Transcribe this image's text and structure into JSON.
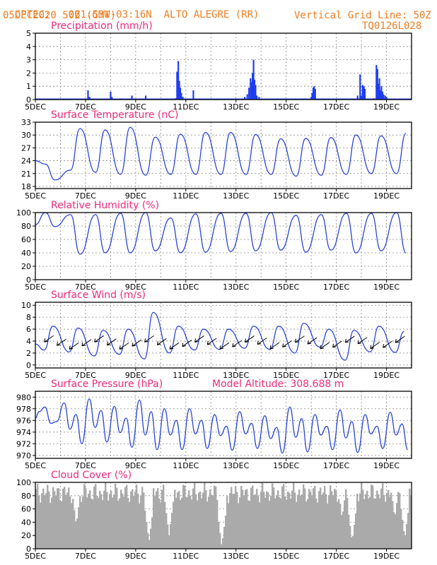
{
  "header": {
    "center_label": "CPTEC:",
    "coords": "061:53W-03:16N",
    "location": "ALTO ALEGRE (RR)",
    "date": "05DEC2020 50Z (GMT)",
    "grid_note": "Vertical Grid Line: 50Z",
    "product_code": "TQ0126L028"
  },
  "colors": {
    "header_text": "#ee7d22",
    "panel_title": "#ee2a7b",
    "series_line": "#2b45d8",
    "precip_bar": "#1f3df0",
    "cloud_fill": "#aaaaaa",
    "wind_arrow": "#000000"
  },
  "chart_data": [
    {
      "id": "precipitation",
      "type": "bar",
      "title": "Precipitation (mm/h)",
      "ylim": [
        0,
        5
      ],
      "yticks": [
        0,
        1,
        2,
        3,
        4,
        5
      ],
      "xticks": [
        "5DEC",
        "7DEC",
        "9DEC",
        "11DEC",
        "13DEC",
        "15DEC",
        "17DEC",
        "19DEC"
      ],
      "grid": true,
      "x_unit": "day offset from 5DEC 00Z",
      "bars": [
        {
          "x": 2.1,
          "y": 0.7
        },
        {
          "x": 2.16,
          "y": 0.2
        },
        {
          "x": 3.0,
          "y": 0.6
        },
        {
          "x": 3.05,
          "y": 0.2
        },
        {
          "x": 3.85,
          "y": 0.3
        },
        {
          "x": 4.4,
          "y": 0.3
        },
        {
          "x": 5.6,
          "y": 0.1
        },
        {
          "x": 5.65,
          "y": 2.1
        },
        {
          "x": 5.7,
          "y": 2.9
        },
        {
          "x": 5.74,
          "y": 1.4
        },
        {
          "x": 5.78,
          "y": 0.9
        },
        {
          "x": 5.82,
          "y": 0.5
        },
        {
          "x": 5.88,
          "y": 0.2
        },
        {
          "x": 6.3,
          "y": 0.7
        },
        {
          "x": 8.35,
          "y": 0.2
        },
        {
          "x": 8.45,
          "y": 0.4
        },
        {
          "x": 8.52,
          "y": 0.9
        },
        {
          "x": 8.58,
          "y": 1.6
        },
        {
          "x": 8.62,
          "y": 1.3
        },
        {
          "x": 8.66,
          "y": 2.0
        },
        {
          "x": 8.7,
          "y": 3.0
        },
        {
          "x": 8.74,
          "y": 1.5
        },
        {
          "x": 8.78,
          "y": 1.1
        },
        {
          "x": 8.83,
          "y": 0.3
        },
        {
          "x": 8.92,
          "y": 0.2
        },
        {
          "x": 11.0,
          "y": 0.2
        },
        {
          "x": 11.04,
          "y": 0.5
        },
        {
          "x": 11.08,
          "y": 0.9
        },
        {
          "x": 11.12,
          "y": 1.0
        },
        {
          "x": 11.16,
          "y": 0.8
        },
        {
          "x": 12.85,
          "y": 0.3
        },
        {
          "x": 12.95,
          "y": 1.9
        },
        {
          "x": 13.0,
          "y": 0.3
        },
        {
          "x": 13.05,
          "y": 1.1
        },
        {
          "x": 13.1,
          "y": 1.0
        },
        {
          "x": 13.14,
          "y": 0.8
        },
        {
          "x": 13.5,
          "y": 0.1
        },
        {
          "x": 13.6,
          "y": 2.6
        },
        {
          "x": 13.64,
          "y": 2.3
        },
        {
          "x": 13.68,
          "y": 1.2
        },
        {
          "x": 13.72,
          "y": 1.6
        },
        {
          "x": 13.76,
          "y": 0.7
        },
        {
          "x": 13.8,
          "y": 1.0
        },
        {
          "x": 13.84,
          "y": 0.6
        },
        {
          "x": 13.88,
          "y": 0.4
        },
        {
          "x": 13.95,
          "y": 0.3
        },
        {
          "x": 14.0,
          "y": 0.2
        }
      ]
    },
    {
      "id": "surface-temperature",
      "type": "line",
      "title": "Surface Temperature (nC)",
      "ylim": [
        17.5,
        33
      ],
      "yticks": [
        18,
        21,
        24,
        27,
        30,
        33
      ],
      "xticks": [
        "5DEC",
        "7DEC",
        "9DEC",
        "11DEC",
        "13DEC",
        "15DEC",
        "17DEC",
        "19DEC"
      ],
      "grid": true,
      "day_max": [
        19.5,
        31.5,
        31.2,
        31.8,
        29.5,
        30.2,
        30.6,
        30.6,
        30.1,
        29.1,
        29.2,
        29.4,
        30.0,
        29.8,
        30.4,
        30.6,
        30.0
      ],
      "day_min": [
        23.2,
        21.8,
        21.3,
        20.8,
        20.6,
        20.8,
        20.8,
        20.8,
        20.8,
        20.8,
        20.4,
        20.6,
        20.8,
        21.0,
        21.0,
        21.3,
        21.5
      ]
    },
    {
      "id": "relative-humidity",
      "type": "line",
      "title": "Relative Humidity (%)",
      "ylim": [
        0,
        100
      ],
      "yticks": [
        0,
        20,
        40,
        60,
        80,
        100
      ],
      "xticks": [
        "5DEC",
        "7DEC",
        "9DEC",
        "11DEC",
        "13DEC",
        "15DEC",
        "17DEC",
        "19DEC"
      ],
      "grid": true,
      "day_max": [
        100,
        97,
        97,
        99,
        100,
        92,
        98,
        99,
        99,
        100,
        96,
        97,
        99,
        99,
        100,
        100,
        97
      ],
      "day_min": [
        79,
        38,
        40,
        40,
        43,
        40,
        41,
        42,
        43,
        44,
        41,
        44,
        40,
        43,
        40,
        40,
        42
      ]
    },
    {
      "id": "surface-wind",
      "type": "line",
      "title": "Surface Wind (m/s)",
      "ylim": [
        -0.5,
        10.5
      ],
      "yticks": [
        0,
        2,
        4,
        6,
        8,
        10
      ],
      "xticks": [
        "5DEC",
        "7DEC",
        "9DEC",
        "11DEC",
        "13DEC",
        "15DEC",
        "17DEC",
        "19DEC"
      ],
      "grid": true,
      "day_peak": [
        6.5,
        6.2,
        5.8,
        6.0,
        8.8,
        6.5,
        6.0,
        6.0,
        6.5,
        6.5,
        7.0,
        6.0,
        5.8,
        6.5,
        5.6,
        6.0,
        7.6
      ],
      "day_low": [
        2.5,
        2.2,
        1.5,
        1.8,
        1.0,
        2.0,
        2.5,
        2.6,
        2.8,
        2.6,
        2.0,
        3.0,
        0.8,
        2.2,
        2.1,
        2.2,
        1.7
      ],
      "arrows": "north-easterly, one per 12 h"
    },
    {
      "id": "surface-pressure",
      "type": "line",
      "title": "Surface Pressure (hPa)",
      "annotation": "Model Altitude: 308.688 m",
      "ylim": [
        969.5,
        981
      ],
      "yticks": [
        970,
        972,
        974,
        976,
        978,
        980
      ],
      "xticks": [
        "5DEC",
        "7DEC",
        "9DEC",
        "11DEC",
        "13DEC",
        "15DEC",
        "17DEC",
        "19DEC"
      ],
      "grid": true,
      "half_day_max": [
        977.5,
        979.0,
        979.7,
        978.4,
        979.5,
        978.0,
        978.0,
        977.0,
        977.5,
        976.8,
        978.3,
        977.0,
        977.8,
        977.0,
        977.4,
        976.5,
        977.6
      ],
      "half_day_min": [
        975.8,
        972.0,
        972.3,
        971.4,
        971.0,
        971.0,
        971.2,
        970.9,
        971.2,
        970.4,
        970.6,
        971.0,
        970.5,
        971.2,
        971.0,
        970.8,
        969.6
      ]
    },
    {
      "id": "cloud-cover",
      "type": "area",
      "title": "Cloud Cover (%)",
      "ylim": [
        0,
        100
      ],
      "yticks": [
        0,
        20,
        40,
        60,
        80,
        100
      ],
      "xticks": [
        "5DEC",
        "7DEC",
        "9DEC",
        "11DEC",
        "13DEC",
        "15DEC",
        "17DEC",
        "19DEC"
      ],
      "grid": true,
      "dips": [
        {
          "x": 1.6,
          "y": 35
        },
        {
          "x": 4.5,
          "y": 10
        },
        {
          "x": 5.3,
          "y": 20
        },
        {
          "x": 7.4,
          "y": 3
        },
        {
          "x": 12.2,
          "y": 45
        },
        {
          "x": 12.6,
          "y": 10
        },
        {
          "x": 14.3,
          "y": 45
        },
        {
          "x": 14.7,
          "y": 15
        },
        {
          "x": 15.3,
          "y": 35
        },
        {
          "x": 15.7,
          "y": 25
        }
      ]
    }
  ]
}
